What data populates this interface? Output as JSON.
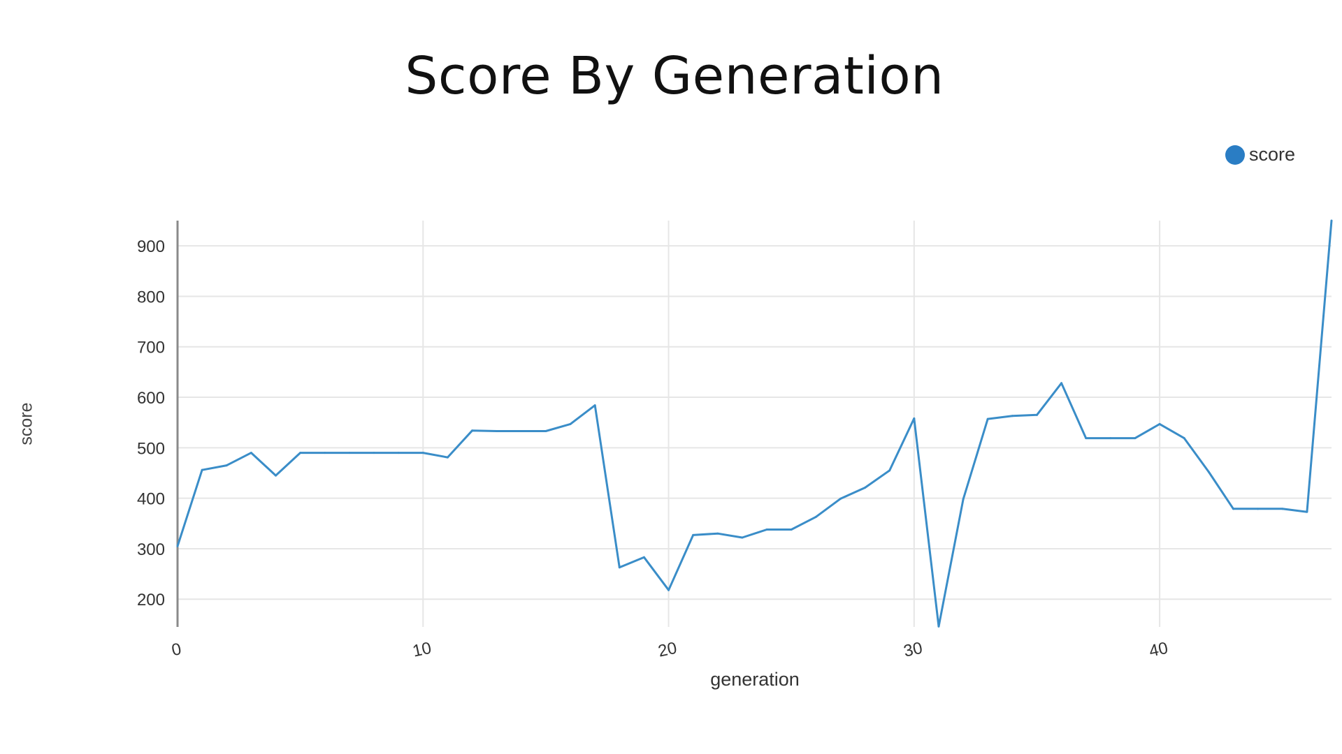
{
  "chart_data": {
    "type": "line",
    "title": "Score By Generation",
    "xlabel": "generation",
    "ylabel": "score",
    "xlim": [
      0,
      47
    ],
    "ylim": [
      145,
      950
    ],
    "xticks": [
      0,
      10,
      20,
      30,
      40
    ],
    "yticks": [
      200,
      300,
      400,
      500,
      600,
      700,
      800,
      900
    ],
    "grid": true,
    "legend": {
      "position": "top-right",
      "entries": [
        "score"
      ]
    },
    "series": [
      {
        "name": "score",
        "color": "#3a8dc8",
        "x": [
          0,
          1,
          2,
          3,
          4,
          5,
          6,
          7,
          8,
          9,
          10,
          11,
          12,
          13,
          14,
          15,
          16,
          17,
          18,
          19,
          20,
          21,
          22,
          23,
          24,
          25,
          26,
          27,
          28,
          29,
          30,
          31,
          32,
          33,
          34,
          35,
          36,
          37,
          38,
          39,
          40,
          41,
          42,
          43,
          44,
          45,
          46,
          47
        ],
        "y": [
          305,
          456,
          465,
          490,
          445,
          490,
          490,
          490,
          490,
          490,
          490,
          481,
          534,
          533,
          533,
          533,
          547,
          584,
          263,
          283,
          218,
          327,
          330,
          322,
          338,
          338,
          363,
          399,
          421,
          455,
          558,
          146,
          398,
          557,
          563,
          565,
          628,
          519,
          519,
          519,
          547,
          519,
          452,
          379,
          379,
          379,
          373,
          950
        ]
      }
    ]
  },
  "legend_swatch_color": "#2a7dc4",
  "grid_color": "#e6e6e6",
  "axis_color": "#8a8a8a"
}
